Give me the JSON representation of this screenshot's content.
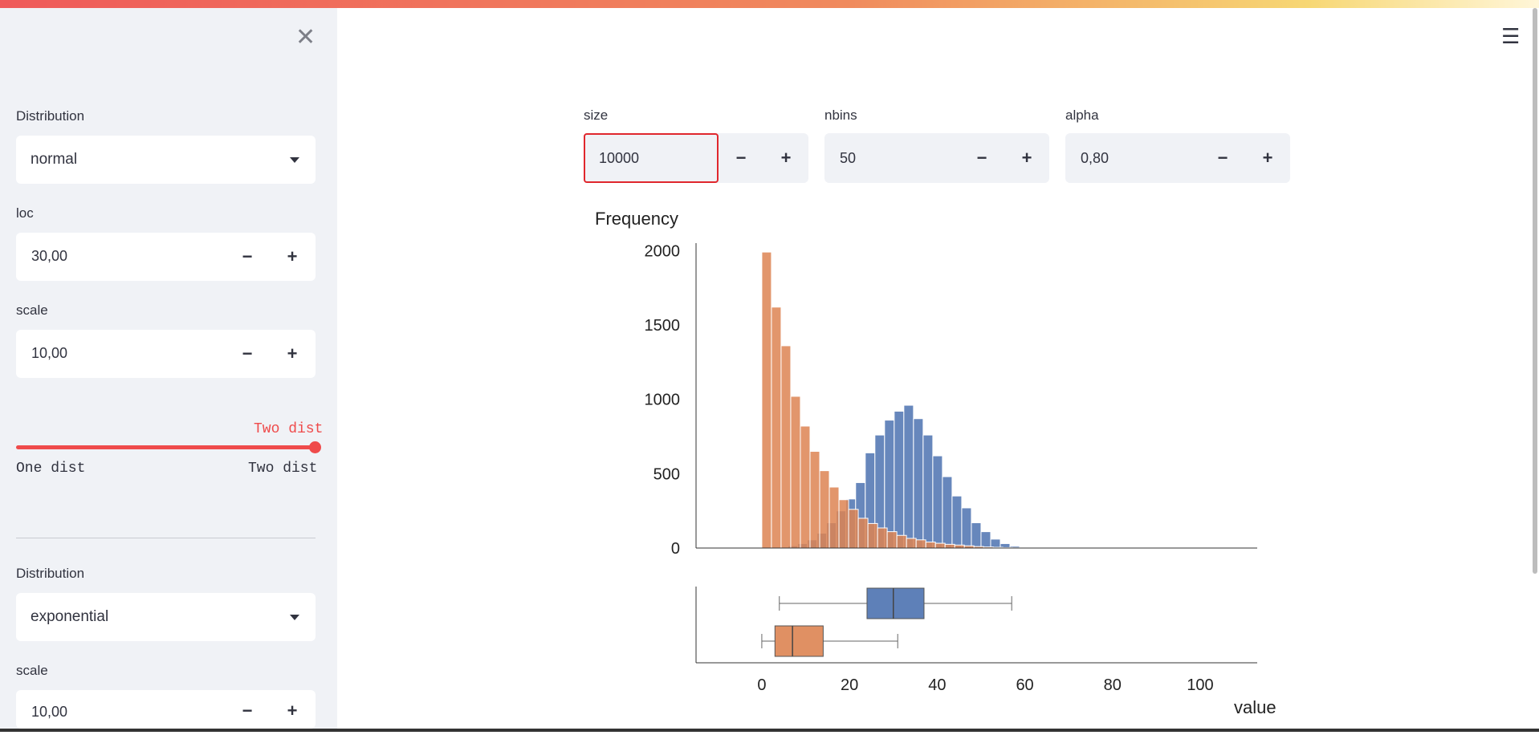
{
  "sidebar": {
    "close_icon": "close-icon",
    "dist1": {
      "label": "Distribution",
      "value": "normal"
    },
    "loc": {
      "label": "loc",
      "value": "30,00"
    },
    "scale1": {
      "label": "scale",
      "value": "10,00"
    },
    "toggle": {
      "current": "Two dist",
      "min_label": "One dist",
      "max_label": "Two dist",
      "position": 1.0
    },
    "dist2": {
      "label": "Distribution",
      "value": "exponential"
    },
    "scale2": {
      "label": "scale",
      "value": "10,00"
    },
    "minus": "−",
    "plus": "+"
  },
  "controls": {
    "size": {
      "label": "size",
      "value": "10000"
    },
    "nbins": {
      "label": "nbins",
      "value": "50"
    },
    "alpha": {
      "label": "alpha",
      "value": "0,80"
    }
  },
  "menu_icon": "hamburger-menu-icon",
  "chart_data": {
    "type": "bar",
    "title": "",
    "ylabel": "Frequency",
    "xlabel": "value",
    "ylim": [
      0,
      2050
    ],
    "xlim": [
      -15,
      113
    ],
    "yticks": [
      0,
      500,
      1000,
      1500,
      2000
    ],
    "xticks": [
      0,
      20,
      40,
      60,
      80,
      100
    ],
    "colors": {
      "normal": "#4c72b0",
      "exponential": "#dd8452"
    },
    "series": [
      {
        "bins": [
          [
            3.8,
            5
          ],
          [
            6.0,
            15
          ],
          [
            8.2,
            30
          ],
          [
            10.4,
            55
          ],
          [
            12.6,
            100
          ],
          [
            14.8,
            170
          ],
          [
            17.0,
            250
          ],
          [
            19.2,
            330
          ],
          [
            21.4,
            440
          ],
          [
            23.6,
            640
          ],
          [
            25.8,
            760
          ],
          [
            28.0,
            860
          ],
          [
            30.2,
            920
          ],
          [
            32.4,
            960
          ],
          [
            34.6,
            870
          ],
          [
            36.8,
            760
          ],
          [
            39.0,
            620
          ],
          [
            41.2,
            480
          ],
          [
            43.4,
            350
          ],
          [
            45.6,
            270
          ],
          [
            47.8,
            170
          ],
          [
            50.0,
            110
          ],
          [
            52.2,
            60
          ],
          [
            54.4,
            30
          ],
          [
            56.6,
            12
          ],
          [
            58.8,
            5
          ]
        ]
      },
      {
        "bins": [
          [
            0.0,
            1990
          ],
          [
            2.2,
            1620
          ],
          [
            4.4,
            1360
          ],
          [
            6.6,
            1020
          ],
          [
            8.8,
            820
          ],
          [
            11.0,
            650
          ],
          [
            13.2,
            520
          ],
          [
            15.4,
            410
          ],
          [
            17.6,
            325
          ],
          [
            19.8,
            260
          ],
          [
            22.0,
            200
          ],
          [
            24.2,
            165
          ],
          [
            26.4,
            135
          ],
          [
            28.6,
            110
          ],
          [
            30.8,
            85
          ],
          [
            33.0,
            65
          ],
          [
            35.2,
            55
          ],
          [
            37.4,
            40
          ],
          [
            39.6,
            32
          ],
          [
            41.8,
            25
          ],
          [
            44.0,
            20
          ],
          [
            46.2,
            15
          ],
          [
            48.4,
            10
          ],
          [
            50.6,
            7
          ],
          [
            52.8,
            5
          ],
          [
            55.0,
            3
          ],
          [
            57.2,
            2
          ],
          [
            59.4,
            1
          ]
        ]
      }
    ],
    "bin_width": 2.2,
    "boxplots": [
      {
        "whisker_low": 4,
        "q1": 24,
        "median": 30,
        "q3": 37,
        "whisker_high": 57
      },
      {
        "whisker_low": 0,
        "q1": 3,
        "median": 7,
        "q3": 14,
        "whisker_high": 31
      }
    ]
  }
}
